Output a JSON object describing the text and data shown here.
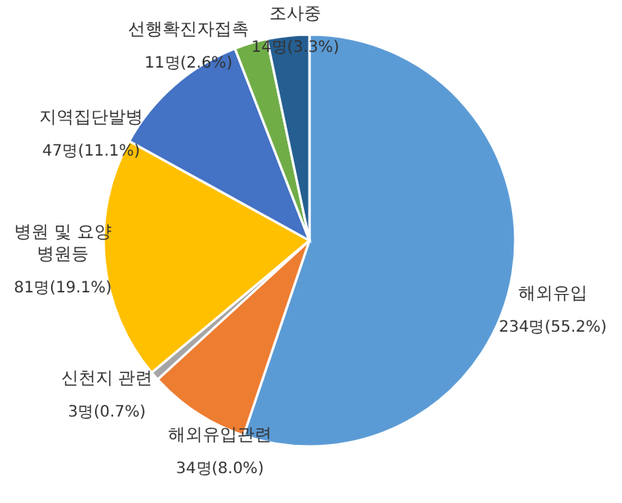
{
  "chart_data": {
    "type": "pie",
    "categories": [
      "해외유입",
      "해외유입관련",
      "신천지 관련",
      "병원 및 요양병원등",
      "지역집단발병",
      "선행확진자접촉",
      "조사중"
    ],
    "values": [
      234,
      34,
      3,
      81,
      47,
      11,
      14
    ],
    "value_labels": [
      "234명(55.2%)",
      "34명(8.0%)",
      "3명(0.7%)",
      "81명(19.1%)",
      "47명(11.1%)",
      "11명(2.6%)",
      "14명(3.3%)"
    ],
    "colors": [
      "#5b9bd5",
      "#ed7d31",
      "#a5a5a5",
      "#ffc000",
      "#4472c4",
      "#70ad47",
      "#255e91"
    ]
  }
}
